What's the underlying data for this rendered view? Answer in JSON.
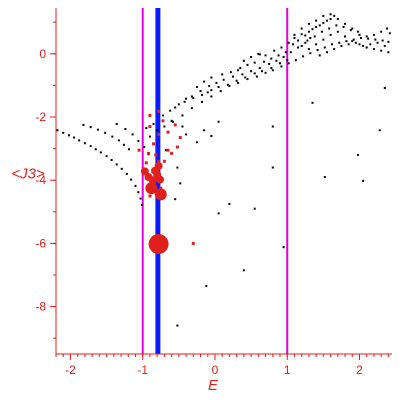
{
  "chart_data": {
    "type": "scatter",
    "title": "",
    "xlabel": "E",
    "ylabel": "<J3>",
    "xlim": [
      -2.2,
      2.45
    ],
    "ylim": [
      -9.5,
      1.45
    ],
    "xticks": [
      -2,
      -1,
      0,
      1,
      2
    ],
    "yticks": [
      0,
      -2,
      -4,
      -6,
      -8
    ],
    "tick_labels": {
      "x": [
        "-2",
        "-1",
        "0",
        "1",
        "2"
      ],
      "y": [
        "0",
        "-2",
        "-4",
        "-6",
        "-8"
      ]
    },
    "grid": false,
    "colors": {
      "axis": "#e0201c",
      "points_black": "#000000",
      "points_red": "#e0201c",
      "line_magenta": "#e000e0",
      "line_blue": "#0a1aff"
    },
    "vertical_lines": [
      {
        "x": -1.0,
        "color": "#e000e0",
        "style": "thin"
      },
      {
        "x": -0.79,
        "color": "#0a1aff",
        "style": "thick"
      },
      {
        "x": 1.0,
        "color": "#e000e0",
        "style": "thin"
      }
    ],
    "series": [
      {
        "marker": "black-dots",
        "points": [
          [
            -2.18,
            -2.42
          ],
          [
            -2.1,
            -2.5
          ],
          [
            -2.02,
            -2.58
          ],
          [
            -1.95,
            -2.65
          ],
          [
            -1.88,
            -2.74
          ],
          [
            -1.8,
            -2.83
          ],
          [
            -1.72,
            -2.92
          ],
          [
            -1.65,
            -3.02
          ],
          [
            -1.58,
            -3.12
          ],
          [
            -1.5,
            -3.24
          ],
          [
            -1.43,
            -3.36
          ],
          [
            -1.36,
            -3.5
          ],
          [
            -1.29,
            -3.64
          ],
          [
            -1.22,
            -3.8
          ],
          [
            -1.16,
            -3.98
          ],
          [
            -1.1,
            -4.18
          ],
          [
            -1.06,
            -4.38
          ],
          [
            -1.03,
            -4.58
          ],
          [
            -1.01,
            -4.78
          ],
          [
            -1.82,
            -2.25
          ],
          [
            -1.72,
            -2.32
          ],
          [
            -1.62,
            -2.4
          ],
          [
            -1.52,
            -2.5
          ],
          [
            -1.42,
            -2.62
          ],
          [
            -1.33,
            -2.74
          ],
          [
            -1.26,
            -2.88
          ],
          [
            -1.19,
            -3.02
          ],
          [
            -1.36,
            -2.22
          ],
          [
            -1.24,
            -2.38
          ],
          [
            -1.14,
            -2.55
          ],
          [
            -1.06,
            -2.76
          ],
          [
            -0.98,
            -2.95
          ],
          [
            -0.92,
            -3.18
          ],
          [
            -0.95,
            -2.35
          ],
          [
            -0.85,
            -2.22
          ],
          [
            -0.72,
            -1.95
          ],
          [
            -0.62,
            -1.8
          ],
          [
            -0.5,
            -1.6
          ],
          [
            -0.4,
            -1.42
          ],
          [
            -0.32,
            -1.35
          ],
          [
            -0.2,
            -1.18
          ],
          [
            -0.08,
            -1.02
          ],
          [
            0.02,
            -0.92
          ],
          [
            0.12,
            -0.82
          ],
          [
            0.25,
            -0.72
          ],
          [
            0.38,
            -0.65
          ],
          [
            0.5,
            -0.55
          ],
          [
            0.62,
            -0.45
          ],
          [
            0.75,
            -0.32
          ],
          [
            0.85,
            -0.22
          ],
          [
            0.95,
            -0.1
          ],
          [
            1.05,
            0.05
          ],
          [
            1.15,
            0.2
          ],
          [
            1.25,
            0.35
          ],
          [
            1.32,
            0.5
          ],
          [
            -0.9,
            -2.62
          ],
          [
            -0.8,
            -2.42
          ],
          [
            -0.7,
            -2.3
          ],
          [
            -0.58,
            -2.15
          ],
          [
            -0.45,
            -1.95
          ],
          [
            -0.32,
            -1.72
          ],
          [
            -0.18,
            -1.52
          ],
          [
            -0.05,
            -1.35
          ],
          [
            0.08,
            -1.18
          ],
          [
            0.2,
            -1.02
          ],
          [
            0.32,
            -0.92
          ],
          [
            0.45,
            -0.8
          ],
          [
            0.58,
            -0.72
          ],
          [
            0.7,
            -0.6
          ],
          [
            0.8,
            -0.52
          ],
          [
            0.92,
            -0.4
          ],
          [
            1.02,
            -0.3
          ],
          [
            1.12,
            -0.2
          ],
          [
            1.22,
            -0.08
          ],
          [
            1.32,
            0.02
          ],
          [
            1.42,
            0.12
          ],
          [
            1.52,
            0.2
          ],
          [
            1.62,
            0.3
          ],
          [
            1.72,
            0.35
          ],
          [
            1.82,
            0.4
          ],
          [
            1.92,
            0.45
          ],
          [
            2.02,
            0.5
          ],
          [
            2.12,
            0.48
          ],
          [
            2.22,
            0.45
          ],
          [
            2.32,
            0.42
          ],
          [
            2.4,
            0.38
          ],
          [
            -0.55,
            -1.7
          ],
          [
            -0.42,
            -1.52
          ],
          [
            -0.3,
            -1.4
          ],
          [
            -0.18,
            -1.3
          ],
          [
            -0.05,
            -1.15
          ],
          [
            0.05,
            -1.05
          ],
          [
            0.18,
            -0.98
          ],
          [
            0.3,
            -0.85
          ],
          [
            0.42,
            -0.75
          ],
          [
            0.55,
            -0.62
          ],
          [
            0.65,
            -0.55
          ],
          [
            0.78,
            -0.45
          ],
          [
            0.9,
            -0.3
          ],
          [
            1.0,
            -0.2
          ],
          [
            0.6,
            0.0
          ],
          [
            0.7,
            -0.05
          ],
          [
            0.82,
            0.1
          ],
          [
            0.92,
            0.2
          ],
          [
            1.02,
            0.35
          ],
          [
            1.1,
            0.5
          ],
          [
            1.2,
            0.62
          ],
          [
            1.3,
            0.7
          ],
          [
            1.4,
            0.85
          ],
          [
            1.5,
            0.98
          ],
          [
            1.6,
            1.1
          ],
          [
            1.65,
            1.2
          ],
          [
            1.55,
            1.05
          ],
          [
            1.45,
            0.9
          ],
          [
            1.35,
            0.78
          ],
          [
            1.25,
            0.58
          ],
          [
            1.15,
            0.42
          ],
          [
            1.08,
            0.3
          ],
          [
            1.1,
            0.6
          ],
          [
            1.2,
            0.8
          ],
          [
            1.3,
            0.95
          ],
          [
            1.4,
            1.05
          ],
          [
            1.5,
            1.2
          ],
          [
            1.6,
            1.25
          ],
          [
            1.7,
            1.1
          ],
          [
            1.8,
            0.95
          ],
          [
            1.9,
            0.8
          ],
          [
            2.0,
            0.6
          ],
          [
            2.1,
            0.55
          ],
          [
            2.2,
            0.6
          ],
          [
            2.3,
            0.7
          ],
          [
            2.38,
            0.8
          ],
          [
            2.42,
            0.65
          ],
          [
            1.2,
            0.25
          ],
          [
            1.3,
            0.15
          ],
          [
            1.4,
            0.3
          ],
          [
            1.5,
            0.45
          ],
          [
            1.6,
            0.6
          ],
          [
            1.7,
            0.7
          ],
          [
            1.8,
            0.55
          ],
          [
            1.9,
            0.4
          ],
          [
            2.0,
            0.3
          ],
          [
            2.1,
            0.2
          ],
          [
            2.2,
            0.15
          ],
          [
            2.3,
            0.1
          ],
          [
            2.4,
            0.05
          ],
          [
            1.45,
            -0.05
          ],
          [
            1.55,
            0.05
          ],
          [
            1.65,
            0.15
          ],
          [
            1.75,
            0.25
          ],
          [
            1.85,
            0.3
          ],
          [
            1.95,
            0.35
          ],
          [
            2.05,
            0.25
          ],
          [
            2.15,
            0.3
          ],
          [
            2.25,
            0.35
          ],
          [
            2.35,
            0.25
          ],
          [
            1.28,
            0.42
          ],
          [
            1.38,
            0.55
          ],
          [
            1.48,
            0.7
          ],
          [
            1.58,
            0.8
          ],
          [
            1.68,
            0.9
          ],
          [
            1.78,
            0.85
          ],
          [
            1.88,
            0.75
          ],
          [
            1.98,
            0.7
          ],
          [
            0.35,
            -0.45
          ],
          [
            0.45,
            -0.35
          ],
          [
            0.55,
            -0.28
          ],
          [
            0.68,
            -0.25
          ],
          [
            0.78,
            -0.15
          ],
          [
            0.88,
            -0.05
          ],
          [
            0.98,
            0.05
          ],
          [
            0.5,
            -0.1
          ],
          [
            0.62,
            -0.02
          ],
          [
            0.4,
            -0.22
          ],
          [
            -0.15,
            -0.88
          ],
          [
            -0.05,
            -0.75
          ],
          [
            0.1,
            -0.65
          ],
          [
            0.22,
            -0.58
          ],
          [
            0.32,
            -0.52
          ],
          [
            -0.25,
            -1.05
          ],
          [
            -0.1,
            -1.22
          ],
          [
            -0.6,
            -2.12
          ],
          [
            -0.45,
            -2.3
          ],
          [
            -0.4,
            -2.55
          ],
          [
            -0.25,
            -2.8
          ],
          [
            -0.15,
            -2.42
          ],
          [
            -0.05,
            -2.6
          ],
          [
            0.05,
            -2.15
          ],
          [
            -0.68,
            -3.05
          ],
          [
            -0.52,
            -3.6
          ],
          [
            -0.48,
            -4.1
          ],
          [
            -0.55,
            -4.6
          ],
          [
            0.05,
            -5.05
          ],
          [
            0.2,
            -4.75
          ],
          [
            0.55,
            -4.9
          ],
          [
            0.8,
            -2.3
          ],
          [
            1.35,
            -1.55
          ],
          [
            1.52,
            -3.9
          ],
          [
            1.98,
            -3.2
          ],
          [
            2.05,
            -4.02
          ],
          [
            2.28,
            -2.42
          ],
          [
            2.35,
            -1.08
          ],
          [
            0.95,
            -6.12
          ],
          [
            0.4,
            -6.85
          ],
          [
            -0.12,
            -7.35
          ],
          [
            -0.52,
            -8.6
          ],
          [
            0.8,
            -3.6
          ]
        ]
      },
      {
        "marker": "red-small",
        "points": [
          [
            -0.9,
            -1.95
          ],
          [
            -0.78,
            -1.82
          ],
          [
            -0.72,
            -2.12
          ],
          [
            -0.9,
            -2.3
          ],
          [
            -0.78,
            -2.55
          ],
          [
            -0.65,
            -2.48
          ],
          [
            -0.55,
            -2.25
          ],
          [
            -0.48,
            -2.65
          ],
          [
            -0.52,
            -2.95
          ],
          [
            -0.6,
            -3.15
          ],
          [
            -0.7,
            -3.4
          ],
          [
            -0.85,
            -2.85
          ],
          [
            -0.92,
            -3.15
          ],
          [
            -1.05,
            -3.05
          ],
          [
            -0.95,
            -3.45
          ],
          [
            -0.82,
            -3.2
          ],
          [
            -0.78,
            -3.4
          ],
          [
            -0.65,
            -3.05
          ],
          [
            -0.75,
            -4.25
          ],
          [
            -0.9,
            -4.5
          ],
          [
            -0.3,
            -6.0
          ]
        ]
      },
      {
        "marker": "red-medium",
        "points": [
          [
            -0.97,
            -3.72
          ],
          [
            -0.92,
            -3.9
          ],
          [
            -0.86,
            -4.0
          ],
          [
            -0.8,
            -3.82
          ],
          [
            -0.76,
            -3.98
          ],
          [
            -0.83,
            -3.7
          ],
          [
            -0.78,
            -3.55
          ]
        ]
      },
      {
        "marker": "red-large",
        "points": [
          [
            -0.88,
            -4.25
          ],
          [
            -0.75,
            -4.45
          ]
        ]
      },
      {
        "marker": "red-xlarge",
        "points": [
          [
            -0.78,
            -6.02
          ]
        ]
      }
    ]
  }
}
